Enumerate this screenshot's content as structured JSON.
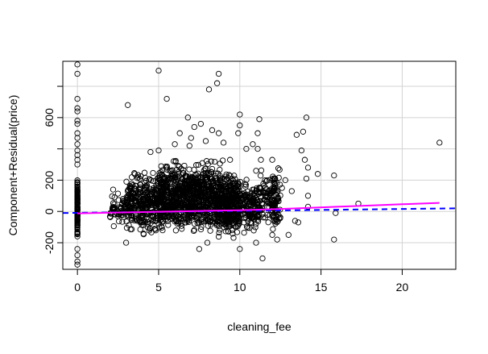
{
  "chart_data": {
    "type": "scatter",
    "title": "",
    "xlabel": "cleaning_fee",
    "ylabel": "Component+Residual(price)",
    "xlim": [
      -0.9,
      23.3
    ],
    "ylim": [
      -370,
      960
    ],
    "grid": true,
    "x_ticks": [
      0,
      5,
      10,
      15,
      20
    ],
    "y_ticks": [
      -200,
      0,
      200,
      600
    ],
    "grid_y": [
      -200,
      0,
      200,
      400,
      600,
      800
    ],
    "clusters": [
      {
        "x_min": 0.0,
        "x_max": 0.0,
        "y_min": -220,
        "y_max": 260,
        "count": 130
      },
      {
        "x_min": 2.0,
        "x_max": 3.0,
        "y_min": -120,
        "y_max": 140,
        "count": 60
      },
      {
        "x_min": 3.0,
        "x_max": 5.0,
        "y_min": -180,
        "y_max": 300,
        "count": 320
      },
      {
        "x_min": 5.0,
        "x_max": 7.0,
        "y_min": -200,
        "y_max": 360,
        "count": 500
      },
      {
        "x_min": 7.0,
        "x_max": 9.0,
        "y_min": -200,
        "y_max": 380,
        "count": 500
      },
      {
        "x_min": 9.0,
        "x_max": 10.0,
        "y_min": -200,
        "y_max": 300,
        "count": 300
      },
      {
        "x_min": 10.0,
        "x_max": 11.2,
        "y_min": -180,
        "y_max": 230,
        "count": 150
      },
      {
        "x_min": 11.2,
        "x_max": 12.5,
        "y_min": -170,
        "y_max": 320,
        "count": 110
      },
      {
        "x_min": 12.0,
        "x_max": 12.3,
        "y_min": -160,
        "y_max": 300,
        "count": 40
      }
    ],
    "points": [
      {
        "x": 0,
        "y": 940
      },
      {
        "x": 0,
        "y": 880
      },
      {
        "x": 0,
        "y": 720
      },
      {
        "x": 0,
        "y": 660
      },
      {
        "x": 0,
        "y": 640
      },
      {
        "x": 0,
        "y": 580
      },
      {
        "x": 0,
        "y": 560
      },
      {
        "x": 0,
        "y": 500
      },
      {
        "x": 0,
        "y": 470
      },
      {
        "x": 0,
        "y": 430
      },
      {
        "x": 0,
        "y": 390
      },
      {
        "x": 0,
        "y": 360
      },
      {
        "x": 0,
        "y": 330
      },
      {
        "x": 0,
        "y": 300
      },
      {
        "x": 0,
        "y": -240
      },
      {
        "x": 0,
        "y": -320
      },
      {
        "x": 0,
        "y": -340
      },
      {
        "x": 0,
        "y": -280
      },
      {
        "x": 3.1,
        "y": 680
      },
      {
        "x": 5.0,
        "y": 900
      },
      {
        "x": 5.5,
        "y": 720
      },
      {
        "x": 8.1,
        "y": 780
      },
      {
        "x": 8.7,
        "y": 880
      },
      {
        "x": 8.6,
        "y": 820
      },
      {
        "x": 6.8,
        "y": 600
      },
      {
        "x": 7.2,
        "y": 540
      },
      {
        "x": 7.0,
        "y": 470
      },
      {
        "x": 7.6,
        "y": 560
      },
      {
        "x": 6.3,
        "y": 500
      },
      {
        "x": 8.3,
        "y": 520
      },
      {
        "x": 8.7,
        "y": 500
      },
      {
        "x": 9.0,
        "y": 440
      },
      {
        "x": 10.0,
        "y": 620
      },
      {
        "x": 10.0,
        "y": 550
      },
      {
        "x": 9.9,
        "y": 500
      },
      {
        "x": 10.4,
        "y": 400
      },
      {
        "x": 10.8,
        "y": 430
      },
      {
        "x": 11.1,
        "y": 500
      },
      {
        "x": 11.2,
        "y": 590
      },
      {
        "x": 11.1,
        "y": 400
      },
      {
        "x": 11.3,
        "y": 330
      },
      {
        "x": 11.0,
        "y": 260
      },
      {
        "x": 5.0,
        "y": 390
      },
      {
        "x": 4.5,
        "y": 380
      },
      {
        "x": 6.0,
        "y": 430
      },
      {
        "x": 6.9,
        "y": 420
      },
      {
        "x": 7.9,
        "y": 450
      },
      {
        "x": 2.2,
        "y": 140
      },
      {
        "x": 3.0,
        "y": -200
      },
      {
        "x": 7.5,
        "y": -240
      },
      {
        "x": 8.0,
        "y": -200
      },
      {
        "x": 10.0,
        "y": -240
      },
      {
        "x": 11.4,
        "y": -300
      },
      {
        "x": 12.3,
        "y": -180
      },
      {
        "x": 13.0,
        "y": -150
      },
      {
        "x": 13.4,
        "y": -60
      },
      {
        "x": 13.6,
        "y": -70
      },
      {
        "x": 14.2,
        "y": 30
      },
      {
        "x": 15.8,
        "y": -180
      },
      {
        "x": 15.9,
        "y": -10
      },
      {
        "x": 15.8,
        "y": 230
      },
      {
        "x": 17.3,
        "y": 50
      },
      {
        "x": 12.6,
        "y": 150
      },
      {
        "x": 12.8,
        "y": 200
      },
      {
        "x": 13.2,
        "y": 130
      },
      {
        "x": 13.5,
        "y": 490
      },
      {
        "x": 13.9,
        "y": 510
      },
      {
        "x": 14.1,
        "y": 600
      },
      {
        "x": 13.8,
        "y": 390
      },
      {
        "x": 14.0,
        "y": 330
      },
      {
        "x": 14.2,
        "y": 280
      },
      {
        "x": 14.1,
        "y": 210
      },
      {
        "x": 14.2,
        "y": 100
      },
      {
        "x": 14.8,
        "y": 240
      },
      {
        "x": 22.3,
        "y": 440
      },
      {
        "x": 12.0,
        "y": -150
      },
      {
        "x": 12.0,
        "y": 330
      },
      {
        "x": 11.0,
        "y": -200
      },
      {
        "x": 9.4,
        "y": 330
      }
    ],
    "fit_line": {
      "style": "dashed",
      "color": "#0000ff",
      "x": [
        -0.9,
        23.3
      ],
      "y": [
        -10,
        20
      ]
    },
    "smooth_line": {
      "style": "solid",
      "color": "#ff00ff",
      "x": [
        0,
        2,
        4,
        6,
        8,
        10,
        12,
        14,
        16,
        18,
        20,
        22.3
      ],
      "y": [
        -12,
        -8,
        -4,
        0,
        4,
        8,
        14,
        22,
        30,
        38,
        46,
        55
      ]
    }
  }
}
